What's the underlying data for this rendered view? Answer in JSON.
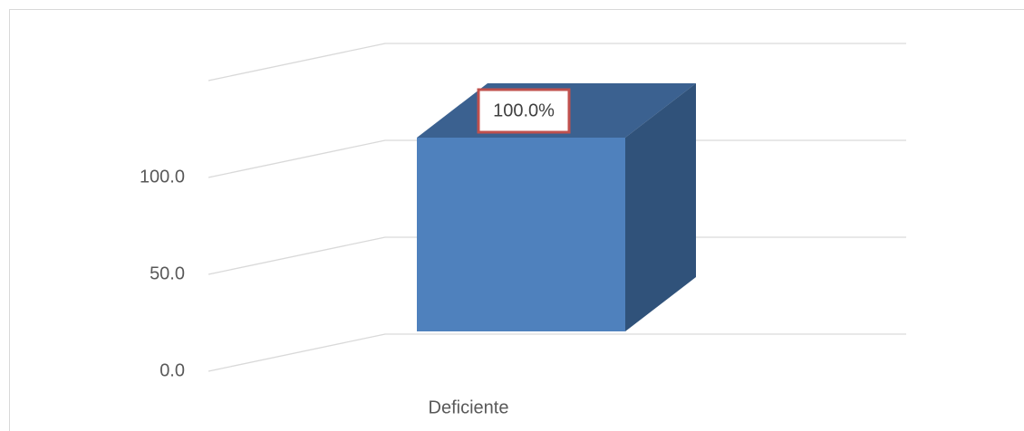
{
  "chart_data": {
    "type": "bar3d",
    "categories": [
      "Deficiente"
    ],
    "values": [
      100
    ],
    "value_labels": [
      "100.0%"
    ],
    "color": "#4f81bd",
    "ylim": [
      0,
      150
    ],
    "yticks": [
      {
        "value": 0,
        "label": "0.0"
      },
      {
        "value": 50,
        "label": "50.0"
      },
      {
        "value": 100,
        "label": "100.0"
      }
    ],
    "grid": true
  }
}
